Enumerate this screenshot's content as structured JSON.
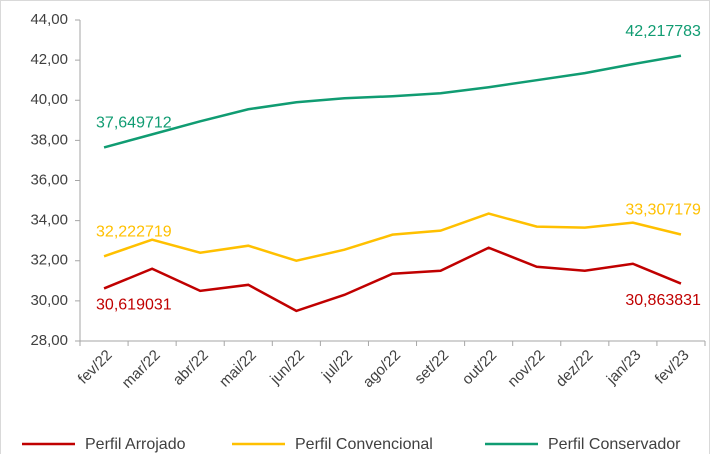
{
  "chart_data": {
    "type": "line",
    "categories": [
      "fev/22",
      "mar/22",
      "abr/22",
      "mai/22",
      "jun/22",
      "jul/22",
      "ago/22",
      "set/22",
      "out/22",
      "nov/22",
      "dez/22",
      "jan/23",
      "fev/23"
    ],
    "series": [
      {
        "name": "Perfil Arrojado",
        "color": "#c00000",
        "values": [
          30.619031,
          31.6,
          30.5,
          30.8,
          29.5,
          30.3,
          31.35,
          31.5,
          32.65,
          31.7,
          31.5,
          31.85,
          30.863831
        ],
        "value_labels": [
          "30,619031",
          null,
          null,
          null,
          null,
          null,
          null,
          null,
          null,
          null,
          null,
          null,
          "30,863831"
        ]
      },
      {
        "name": "Perfil Convencional",
        "color": "#ffc000",
        "values": [
          32.222719,
          33.05,
          32.4,
          32.75,
          32.0,
          32.55,
          33.3,
          33.5,
          34.35,
          33.7,
          33.65,
          33.9,
          33.307179
        ],
        "value_labels": [
          "32,222719",
          null,
          null,
          null,
          null,
          null,
          null,
          null,
          null,
          null,
          null,
          null,
          "33,307179"
        ]
      },
      {
        "name": "Perfil Conservador",
        "color": "#109c72",
        "values": [
          37.649712,
          38.3,
          38.95,
          39.55,
          39.9,
          40.1,
          40.2,
          40.35,
          40.65,
          41.0,
          41.35,
          41.8,
          42.217783
        ],
        "value_labels": [
          "37,649712",
          null,
          null,
          null,
          null,
          null,
          null,
          null,
          null,
          null,
          null,
          null,
          "42,217783"
        ]
      }
    ],
    "ylim": [
      28,
      44
    ],
    "yticks": [
      {
        "value": 28,
        "label": "28,00"
      },
      {
        "value": 30,
        "label": "30,00"
      },
      {
        "value": 32,
        "label": "32,00"
      },
      {
        "value": 34,
        "label": "34,00"
      },
      {
        "value": 36,
        "label": "36,00"
      },
      {
        "value": 38,
        "label": "38,00"
      },
      {
        "value": 40,
        "label": "40,00"
      },
      {
        "value": 42,
        "label": "42,00"
      },
      {
        "value": 44,
        "label": "44,00"
      }
    ],
    "grid": false,
    "legend": "bottom"
  }
}
